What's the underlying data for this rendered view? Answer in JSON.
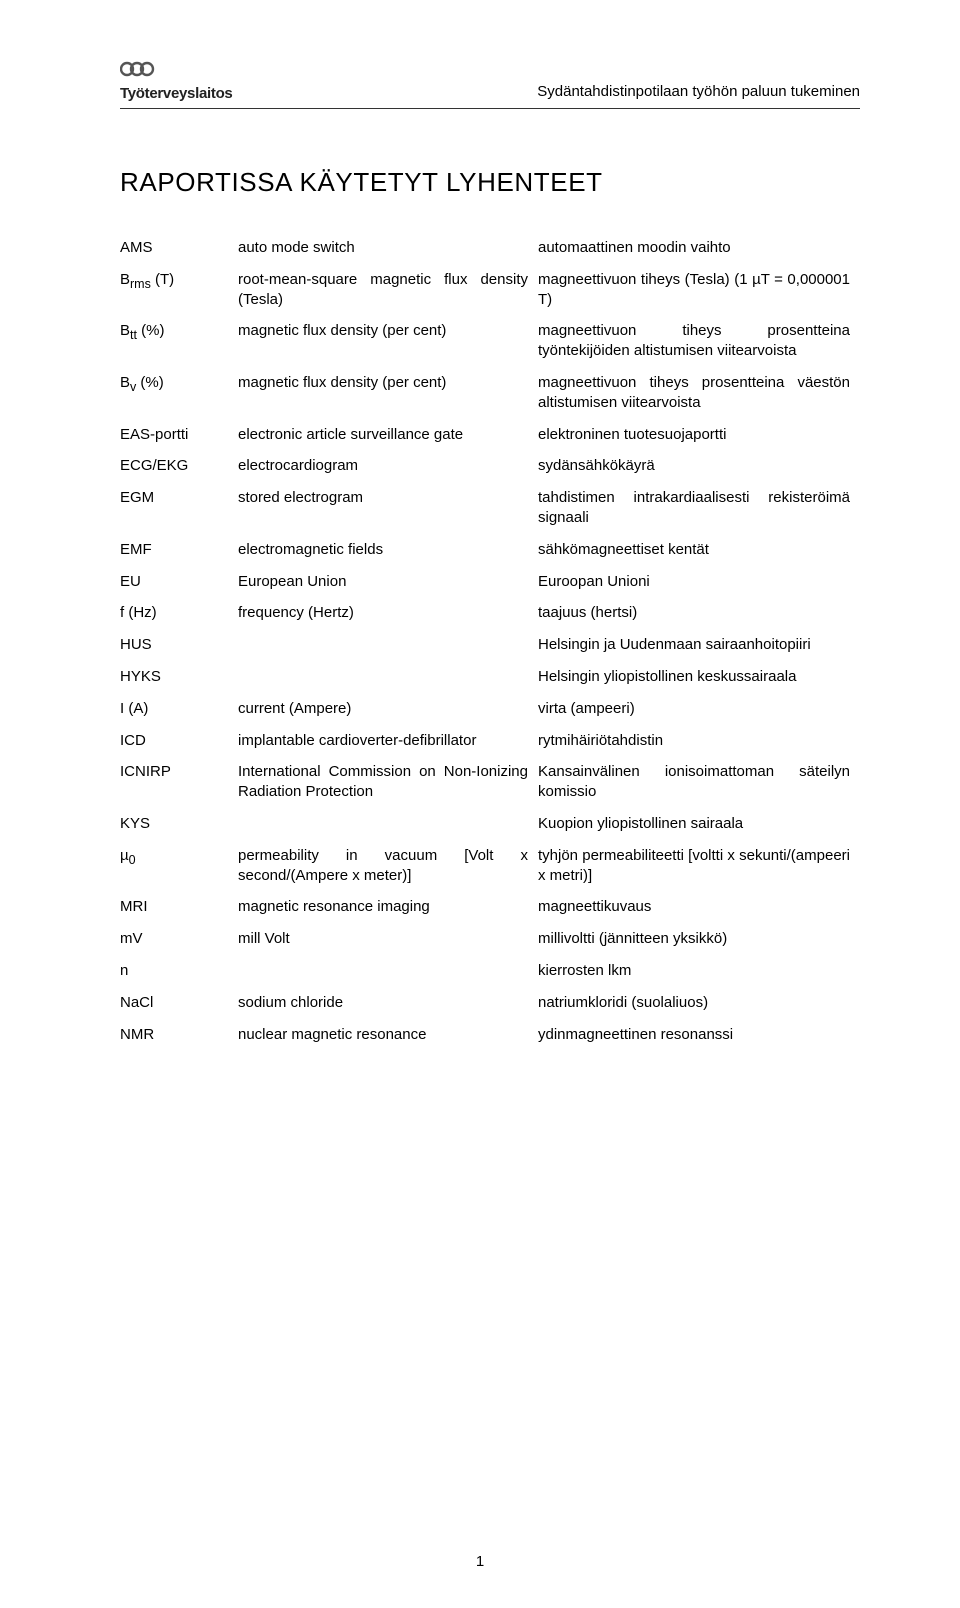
{
  "header": {
    "brand": "Työterveyslaitos",
    "right": "Sydäntahdistinpotilaan työhön paluun tukeminen"
  },
  "title": "RAPORTISSA KÄYTETYT LYHENTEET",
  "page_number": "1",
  "colors": {
    "text": "#000000",
    "bg": "#ffffff",
    "rule": "#333333",
    "logo_icon": "#555555"
  },
  "typography": {
    "body_fontsize_pt": 11,
    "title_fontsize_pt": 20,
    "header_fontsize_pt": 11,
    "font_family": "Verdana, Tahoma, sans-serif"
  },
  "rows": [
    {
      "abbr": "AMS",
      "en": "auto mode switch",
      "fi": "automaattinen moodin vaihto"
    },
    {
      "abbr": "Brms (T)",
      "en": "root-mean-square magnetic flux density (Tesla)",
      "fi": "magneettivuon tiheys (Tesla) (1 µT = 0,000001 T)"
    },
    {
      "abbr": "Btt (%)",
      "en": "magnetic flux density (per cent)",
      "fi": "magneettivuon tiheys prosentteina työntekijöiden altistumisen viitearvoista"
    },
    {
      "abbr": "Bv (%)",
      "en": "magnetic flux density (per cent)",
      "fi": "magneettivuon tiheys prosentteina väestön altistumisen viitearvoista"
    },
    {
      "abbr": "EAS-portti",
      "en": "electronic article surveillance gate",
      "fi": "elektroninen tuotesuojaportti"
    },
    {
      "abbr": "ECG/EKG",
      "en": "electrocardiogram",
      "fi": "sydänsähkökäyrä"
    },
    {
      "abbr": "EGM",
      "en": "stored electrogram",
      "fi": "tahdistimen intrakardiaalisesti rekisteröimä signaali"
    },
    {
      "abbr": "EMF",
      "en": "electromagnetic fields",
      "fi": "sähkömagneettiset kentät"
    },
    {
      "abbr": "EU",
      "en": "European Union",
      "fi": "Euroopan Unioni"
    },
    {
      "abbr": "f (Hz)",
      "en": "frequency (Hertz)",
      "fi": "taajuus (hertsi)"
    },
    {
      "abbr": "HUS",
      "en": "",
      "fi": "Helsingin ja Uudenmaan sairaanhoitopiiri"
    },
    {
      "abbr": "HYKS",
      "en": "",
      "fi": "Helsingin yliopistollinen keskussairaala"
    },
    {
      "abbr": "I (A)",
      "en": "current (Ampere)",
      "fi": "virta (ampeeri)"
    },
    {
      "abbr": "ICD",
      "en": "implantable cardioverter-defibrillator",
      "fi": "rytmihäiriötahdistin"
    },
    {
      "abbr": "ICNIRP",
      "en": "International Commission on Non-Ionizing Radiation Protection",
      "fi": "Kansainvälinen ionisoimattoman säteilyn komissio"
    },
    {
      "abbr": "KYS",
      "en": "",
      "fi": "Kuopion yliopistollinen sairaala"
    },
    {
      "abbr": "µ0",
      "en": "permeability in vacuum [Volt x second/(Ampere x  meter)]",
      "fi": "tyhjön permeabiliteetti [voltti x sekunti/(ampeeri x metri)]"
    },
    {
      "abbr": "MRI",
      "en": "magnetic resonance imaging",
      "fi": "magneettikuvaus"
    },
    {
      "abbr": "mV",
      "en": "mill Volt",
      "fi": "millivoltti (jännitteen yksikkö)"
    },
    {
      "abbr": "n",
      "en": "",
      "fi": "kierrosten lkm"
    },
    {
      "abbr": "NaCl",
      "en": "sodium chloride",
      "fi": "natriumkloridi (suolaliuos)"
    },
    {
      "abbr": "NMR",
      "en": "nuclear magnetic resonance",
      "fi": "ydinmagneettinen resonanssi"
    }
  ]
}
